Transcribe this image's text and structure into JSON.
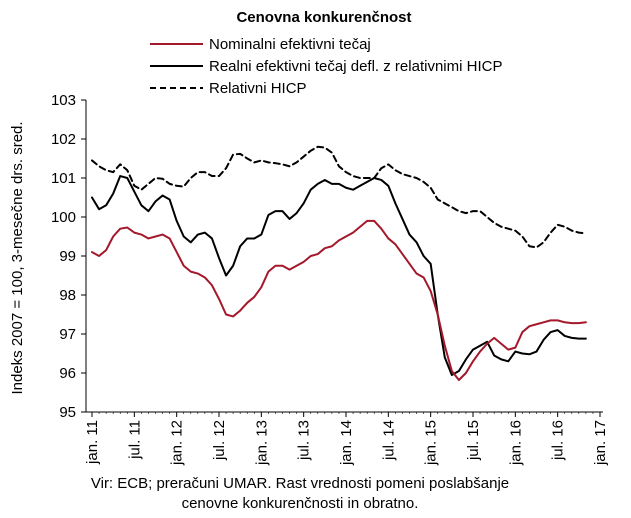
{
  "chart_data": {
    "type": "line",
    "title": "Cenovna konkurenčnost",
    "ylabel": "Indeks 2007 = 100, 3-mesečne drs. sred.",
    "xlabel": "",
    "ylim": [
      95,
      103
    ],
    "yticks": [
      95,
      96,
      97,
      98,
      99,
      100,
      101,
      102,
      103
    ],
    "xtick_labels": [
      "jan. 11",
      "jul. 11",
      "jan. 12",
      "jul. 12",
      "jan. 13",
      "jul. 13",
      "jan. 14",
      "jul. 14",
      "jan. 15",
      "jul. 15",
      "jan. 16",
      "jul. 16",
      "jan. 17"
    ],
    "grid": false,
    "legend_position": "top",
    "x_start": "2011-01",
    "x_end": "2017-01",
    "series": [
      {
        "name": "Nominalni efektivni tečaj",
        "color": "#a3182a",
        "dash": "solid",
        "values": [
          99.1,
          99.0,
          99.15,
          99.5,
          99.7,
          99.73,
          99.6,
          99.55,
          99.45,
          99.5,
          99.55,
          99.45,
          99.1,
          98.75,
          98.6,
          98.55,
          98.45,
          98.25,
          97.9,
          97.5,
          97.45,
          97.6,
          97.8,
          97.95,
          98.2,
          98.6,
          98.75,
          98.75,
          98.65,
          98.75,
          98.85,
          99.0,
          99.05,
          99.2,
          99.25,
          99.4,
          99.5,
          99.6,
          99.75,
          99.9,
          99.9,
          99.7,
          99.45,
          99.3,
          99.05,
          98.8,
          98.55,
          98.45,
          98.1,
          97.5,
          96.7,
          96.05,
          95.82,
          96.0,
          96.3,
          96.55,
          96.75,
          96.9,
          96.75,
          96.6,
          96.65,
          97.05,
          97.2,
          97.25,
          97.3,
          97.35,
          97.35,
          97.3,
          97.28,
          97.28,
          97.3
        ]
      },
      {
        "name": "Realni efektivni tečaj defl. z relativnimi HICP",
        "color": "#000000",
        "dash": "solid",
        "values": [
          100.5,
          100.2,
          100.3,
          100.6,
          101.05,
          101.0,
          100.65,
          100.3,
          100.15,
          100.4,
          100.55,
          100.45,
          99.9,
          99.5,
          99.35,
          99.55,
          99.6,
          99.45,
          98.95,
          98.5,
          98.75,
          99.25,
          99.45,
          99.45,
          99.55,
          100.05,
          100.15,
          100.15,
          99.95,
          100.1,
          100.35,
          100.7,
          100.85,
          100.95,
          100.85,
          100.85,
          100.75,
          100.7,
          100.8,
          100.9,
          101.0,
          100.95,
          100.8,
          100.35,
          99.95,
          99.55,
          99.35,
          99.0,
          98.8,
          97.5,
          96.4,
          95.95,
          96.05,
          96.35,
          96.6,
          96.7,
          96.8,
          96.45,
          96.35,
          96.3,
          96.55,
          96.5,
          96.48,
          96.55,
          96.85,
          97.05,
          97.1,
          96.95,
          96.9,
          96.88,
          96.88
        ]
      },
      {
        "name": "Relativni HICP",
        "color": "#000000",
        "dash": "dashed",
        "values": [
          101.45,
          101.3,
          101.2,
          101.15,
          101.35,
          101.2,
          100.8,
          100.7,
          100.85,
          101.0,
          100.98,
          100.85,
          100.8,
          100.78,
          101.0,
          101.15,
          101.15,
          101.05,
          101.05,
          101.25,
          101.6,
          101.62,
          101.5,
          101.4,
          101.45,
          101.4,
          101.38,
          101.35,
          101.3,
          101.4,
          101.55,
          101.7,
          101.8,
          101.78,
          101.65,
          101.3,
          101.15,
          101.05,
          101.0,
          101.0,
          101.0,
          101.25,
          101.35,
          101.2,
          101.1,
          101.05,
          101.0,
          100.9,
          100.75,
          100.45,
          100.35,
          100.25,
          100.15,
          100.1,
          100.15,
          100.15,
          100.0,
          99.85,
          99.75,
          99.7,
          99.65,
          99.5,
          99.25,
          99.22,
          99.35,
          99.6,
          99.8,
          99.75,
          99.65,
          99.6,
          99.58
        ]
      }
    ]
  },
  "source_text": {
    "line1": "Vir: ECB; preračuni UMAR.  Rast vrednosti pomeni poslabšanje",
    "line2": "cenovne konkurenčnosti in obratno."
  }
}
